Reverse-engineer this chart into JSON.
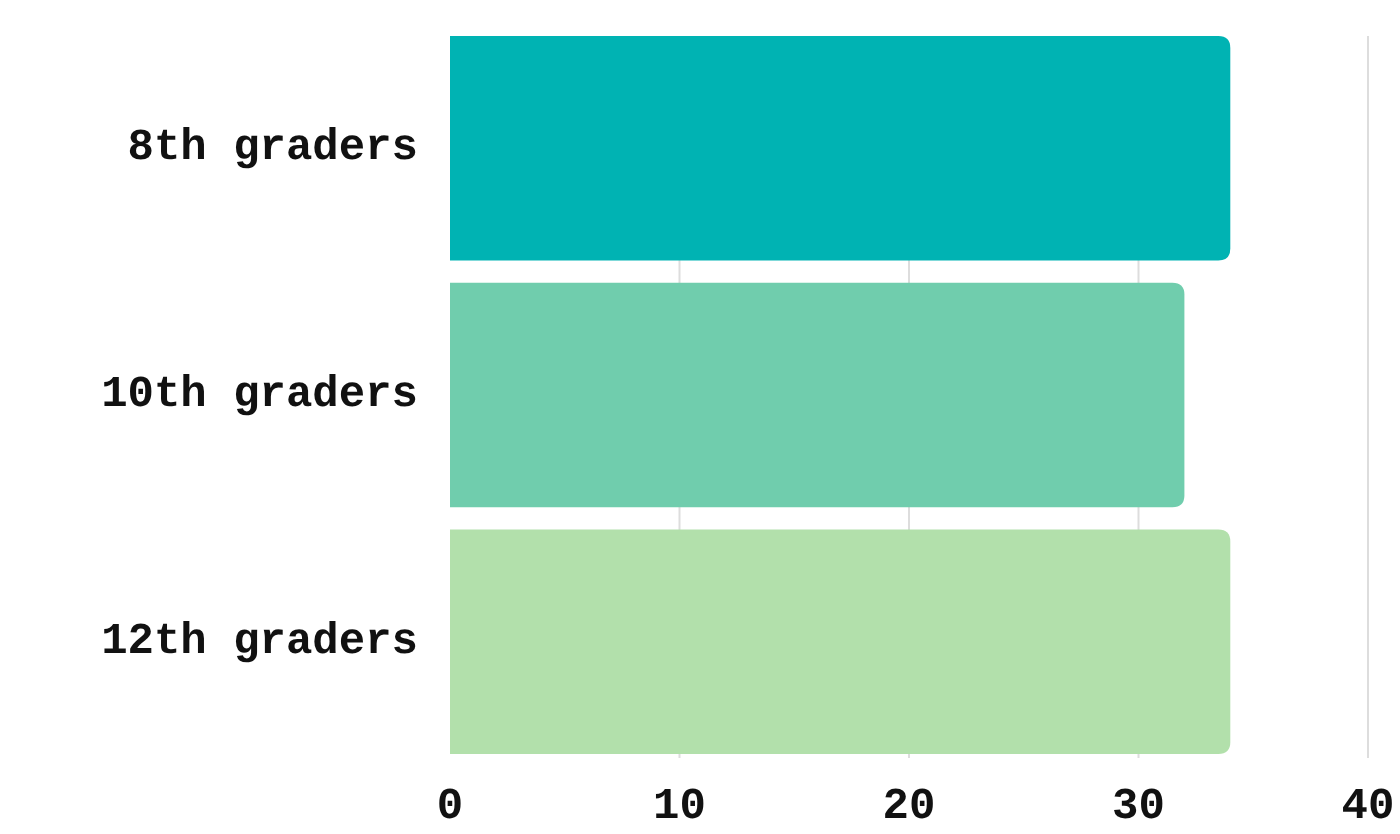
{
  "chart_data": {
    "type": "bar",
    "orientation": "horizontal",
    "categories": [
      "8th graders",
      "10th graders",
      "12th graders"
    ],
    "values": [
      34,
      32,
      34
    ],
    "colors": [
      "#00b3b3",
      "#70cdad",
      "#b2e0ab"
    ],
    "xlim": [
      0,
      40
    ],
    "xticks": [
      0,
      10,
      20,
      30,
      40
    ],
    "grid": "x"
  }
}
